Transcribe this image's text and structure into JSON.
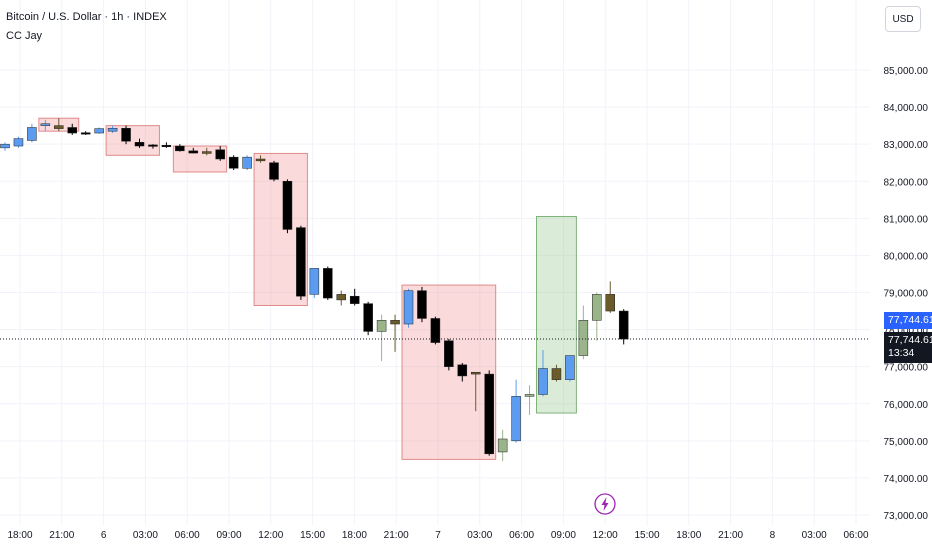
{
  "header": {
    "title": "Bitcoin / U.S. Dollar · 1h · INDEX",
    "indicator": "CC Jay"
  },
  "currency_button": "USD",
  "price_tags": {
    "last_price_blue": "77,744.61",
    "last_price_black": "77,744.61",
    "countdown": "13:34"
  },
  "icons": {
    "event": "lightning-bolt-icon"
  },
  "colors": {
    "bull": "#5b9cf0",
    "bear": "#000000",
    "bull_accent": "#9bb58a",
    "bear_accent": "#6b5a2a",
    "bear_box": "rgba(242,150,150,0.35)",
    "bull_box": "rgba(150,200,140,0.35)",
    "blue_tag": "#2962ff",
    "grid": "#f0f3fa"
  },
  "chart_data": {
    "type": "candlestick",
    "title": "Bitcoin / U.S. Dollar · 1h · INDEX",
    "ylim": [
      72700,
      86300
    ],
    "y_ticks": [
      73000,
      74000,
      75000,
      76000,
      77000,
      78000,
      79000,
      80000,
      81000,
      82000,
      83000,
      84000,
      85000
    ],
    "y_tick_labels": [
      "73,000.00",
      "74,000.00",
      "75,000.00",
      "76,000.00",
      "77,000.00",
      "78,000.00",
      "79,000.00",
      "80,000.00",
      "81,000.00",
      "82,000.00",
      "83,000.00",
      "84,000.00",
      "85,000.00"
    ],
    "x_tick_labels": [
      "18:00",
      "21:00",
      "6",
      "03:00",
      "06:00",
      "09:00",
      "12:00",
      "15:00",
      "18:00",
      "21:00",
      "7",
      "03:00",
      "06:00",
      "09:00",
      "12:00",
      "15:00",
      "18:00",
      "21:00",
      "8",
      "03:00",
      "06:00"
    ],
    "last_price": 77744.61,
    "candles": [
      {
        "o": 82900,
        "h": 83050,
        "l": 82820,
        "c": 83000,
        "color": "bull"
      },
      {
        "o": 82950,
        "h": 83200,
        "l": 82900,
        "c": 83150,
        "color": "bull"
      },
      {
        "o": 83100,
        "h": 83550,
        "l": 83050,
        "c": 83450,
        "color": "bull"
      },
      {
        "o": 83500,
        "h": 83650,
        "l": 83350,
        "c": 83550,
        "color": "bull"
      },
      {
        "o": 83500,
        "h": 83700,
        "l": 83350,
        "c": 83420,
        "color": "bear_accent"
      },
      {
        "o": 83450,
        "h": 83550,
        "l": 83250,
        "c": 83300,
        "color": "bear"
      },
      {
        "o": 83300,
        "h": 83350,
        "l": 83250,
        "c": 83310,
        "color": "bear"
      },
      {
        "o": 83300,
        "h": 83450,
        "l": 83280,
        "c": 83420,
        "color": "bull"
      },
      {
        "o": 83350,
        "h": 83500,
        "l": 83300,
        "c": 83430,
        "color": "bull"
      },
      {
        "o": 83430,
        "h": 83500,
        "l": 83000,
        "c": 83080,
        "color": "bear"
      },
      {
        "o": 83050,
        "h": 83150,
        "l": 82900,
        "c": 82950,
        "color": "bear"
      },
      {
        "o": 82950,
        "h": 83000,
        "l": 82880,
        "c": 82980,
        "color": "bear"
      },
      {
        "o": 82970,
        "h": 83050,
        "l": 82900,
        "c": 82950,
        "color": "bear"
      },
      {
        "o": 82950,
        "h": 83000,
        "l": 82800,
        "c": 82820,
        "color": "bear"
      },
      {
        "o": 82820,
        "h": 82900,
        "l": 82750,
        "c": 82760,
        "color": "bear"
      },
      {
        "o": 82800,
        "h": 82900,
        "l": 82700,
        "c": 82750,
        "color": "bear_accent"
      },
      {
        "o": 82850,
        "h": 82950,
        "l": 82550,
        "c": 82600,
        "color": "bear"
      },
      {
        "o": 82650,
        "h": 82700,
        "l": 82300,
        "c": 82350,
        "color": "bear"
      },
      {
        "o": 82350,
        "h": 82700,
        "l": 82300,
        "c": 82650,
        "color": "bull"
      },
      {
        "o": 82600,
        "h": 82700,
        "l": 82500,
        "c": 82550,
        "color": "bear_accent"
      },
      {
        "o": 82500,
        "h": 82550,
        "l": 82000,
        "c": 82050,
        "color": "bear"
      },
      {
        "o": 82000,
        "h": 82050,
        "l": 80600,
        "c": 80700,
        "color": "bear"
      },
      {
        "o": 80750,
        "h": 80800,
        "l": 78800,
        "c": 78900,
        "color": "bear"
      },
      {
        "o": 78950,
        "h": 79650,
        "l": 78850,
        "c": 79650,
        "color": "bull"
      },
      {
        "o": 79650,
        "h": 79700,
        "l": 78800,
        "c": 78850,
        "color": "bear"
      },
      {
        "o": 78800,
        "h": 79050,
        "l": 78650,
        "c": 78950,
        "color": "bear_accent"
      },
      {
        "o": 78900,
        "h": 79100,
        "l": 78650,
        "c": 78700,
        "color": "bear"
      },
      {
        "o": 78700,
        "h": 78750,
        "l": 77850,
        "c": 77950,
        "color": "bear"
      },
      {
        "o": 77950,
        "h": 78400,
        "l": 77150,
        "c": 78250,
        "color": "bull_accent"
      },
      {
        "o": 78250,
        "h": 78400,
        "l": 77400,
        "c": 78150,
        "color": "bear_accent"
      },
      {
        "o": 78150,
        "h": 79100,
        "l": 78050,
        "c": 79050,
        "color": "bull"
      },
      {
        "o": 79050,
        "h": 79150,
        "l": 78200,
        "c": 78300,
        "color": "bear"
      },
      {
        "o": 78300,
        "h": 78350,
        "l": 77600,
        "c": 77650,
        "color": "bear"
      },
      {
        "o": 77700,
        "h": 77750,
        "l": 76900,
        "c": 77000,
        "color": "bear"
      },
      {
        "o": 77050,
        "h": 77100,
        "l": 76600,
        "c": 76750,
        "color": "bear"
      },
      {
        "o": 76800,
        "h": 76850,
        "l": 75800,
        "c": 76850,
        "color": "bear_accent"
      },
      {
        "o": 76800,
        "h": 76900,
        "l": 74600,
        "c": 74650,
        "color": "bear"
      },
      {
        "o": 74700,
        "h": 75300,
        "l": 74450,
        "c": 75050,
        "color": "bull_accent"
      },
      {
        "o": 75000,
        "h": 76650,
        "l": 74950,
        "c": 76200,
        "color": "bull"
      },
      {
        "o": 76200,
        "h": 76500,
        "l": 75700,
        "c": 76250,
        "color": "bull_accent"
      },
      {
        "o": 76250,
        "h": 77450,
        "l": 76200,
        "c": 76950,
        "color": "bull"
      },
      {
        "o": 76950,
        "h": 77050,
        "l": 76600,
        "c": 76650,
        "color": "bear_accent"
      },
      {
        "o": 76650,
        "h": 77300,
        "l": 76600,
        "c": 77300,
        "color": "bull"
      },
      {
        "o": 77300,
        "h": 78650,
        "l": 77200,
        "c": 78250,
        "color": "bull_accent"
      },
      {
        "o": 78250,
        "h": 79000,
        "l": 77700,
        "c": 78950,
        "color": "bull_accent"
      },
      {
        "o": 78950,
        "h": 79300,
        "l": 78450,
        "c": 78500,
        "color": "bear_accent"
      },
      {
        "o": 78500,
        "h": 78550,
        "l": 77600,
        "c": 77745,
        "color": "bear"
      }
    ],
    "zones": [
      {
        "type": "bear",
        "from_candle": 3,
        "to_candle": 5,
        "top": 83700,
        "bottom": 83350
      },
      {
        "type": "bear",
        "from_candle": 8,
        "to_candle": 11,
        "top": 83500,
        "bottom": 82700
      },
      {
        "type": "bear",
        "from_candle": 13,
        "to_candle": 16,
        "top": 82950,
        "bottom": 82250
      },
      {
        "type": "bear",
        "from_candle": 19,
        "to_candle": 22,
        "top": 82750,
        "bottom": 78650
      },
      {
        "type": "bear",
        "from_candle": 30,
        "to_candle": 36,
        "top": 79200,
        "bottom": 74500
      },
      {
        "type": "bull",
        "from_candle": 40,
        "to_candle": 42,
        "top": 81050,
        "bottom": 75750
      }
    ]
  }
}
